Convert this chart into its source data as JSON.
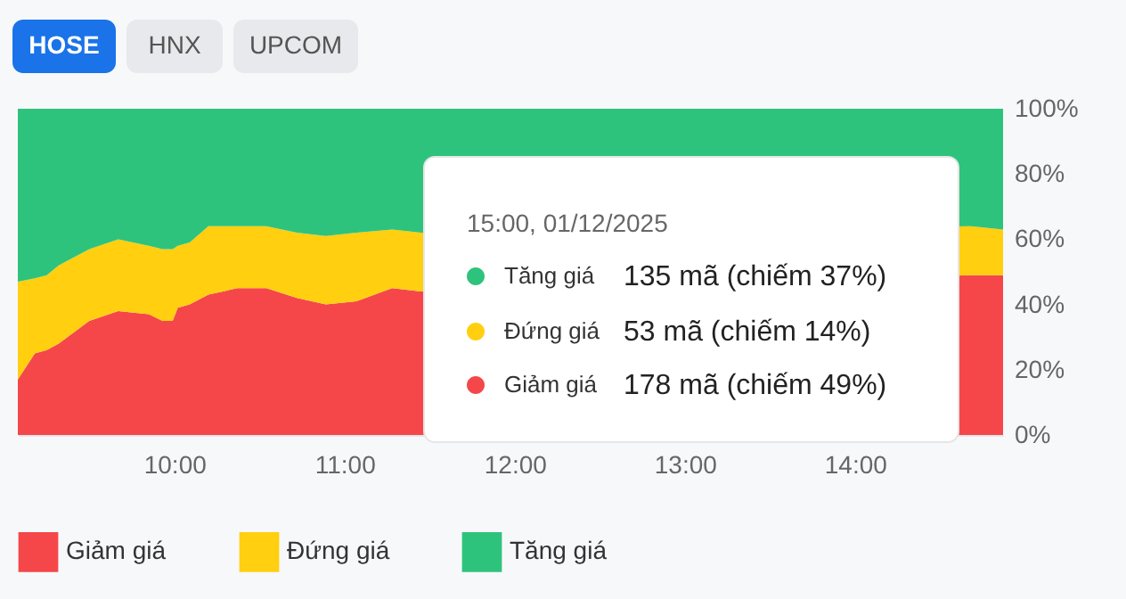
{
  "chart_data": {
    "type": "area",
    "stacked": true,
    "x": [
      9.08,
      9.18,
      9.25,
      9.32,
      9.5,
      9.67,
      9.85,
      9.93,
      9.99,
      10.02,
      10.09,
      10.2,
      10.37,
      10.54,
      10.72,
      10.89,
      11.07,
      11.28,
      11.45,
      14.68,
      14.87
    ],
    "series": [
      {
        "name": "Giảm giá",
        "color": "#f5474a",
        "values": [
          17,
          25,
          26,
          28,
          35,
          38,
          37,
          35,
          35,
          39,
          40,
          43,
          45,
          45,
          42,
          40,
          41,
          45,
          44,
          49,
          49
        ]
      },
      {
        "name": "Đứng giá",
        "color": "#ffcf10",
        "values": [
          30,
          23,
          23,
          24,
          22,
          22,
          21,
          22,
          22,
          19,
          19,
          21,
          19,
          19,
          20,
          21,
          21,
          18,
          18,
          15,
          14
        ]
      },
      {
        "name": "Tăng giá",
        "color": "#2ec37c",
        "values": [
          53,
          52,
          51,
          48,
          43,
          40,
          42,
          43,
          43,
          42,
          41,
          36,
          36,
          36,
          38,
          39,
          38,
          37,
          38,
          36,
          37
        ]
      }
    ],
    "xlim": [
      9.08,
      14.87
    ],
    "xticks": [
      {
        "value": 10,
        "label": "10:00"
      },
      {
        "value": 11,
        "label": "11:00"
      },
      {
        "value": 12,
        "label": "12:00"
      },
      {
        "value": 13,
        "label": "13:00"
      },
      {
        "value": 14,
        "label": "14:00"
      }
    ],
    "ylim": [
      0,
      100
    ],
    "yticks": [
      {
        "value": 0,
        "label": "0%"
      },
      {
        "value": 20,
        "label": "20%"
      },
      {
        "value": 40,
        "label": "40%"
      },
      {
        "value": 60,
        "label": "60%"
      },
      {
        "value": 80,
        "label": "80%"
      },
      {
        "value": 100,
        "label": "100%"
      }
    ],
    "grid": false,
    "legend": "bottom",
    "annotations": [
      "HOSE",
      "HNX",
      "UPCOM",
      "15:00, 01/12/2025",
      "Tăng giá",
      "135 mã (chiếm 37%)",
      "Đứng giá",
      "53 mã (chiếm 14%)",
      "Giảm giá",
      "178 mã (chiếm 49%)"
    ]
  }
}
